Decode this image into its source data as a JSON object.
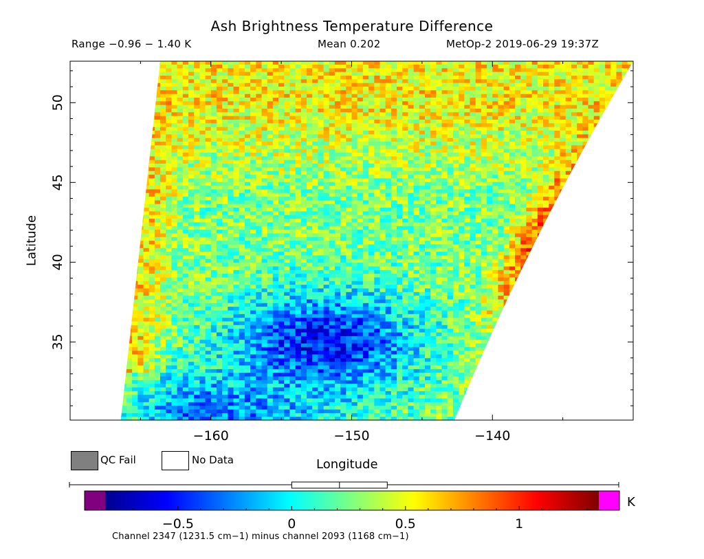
{
  "header": {
    "title": "Ash Brightness Temperature Difference",
    "range_text": "Range −0.96 − 1.40 K",
    "mean_text": "Mean 0.202",
    "satellite_time_text": "MetOp-2 2019-06-29 19:37Z"
  },
  "legend": {
    "qc_fail_label": "QC Fail",
    "no_data_label": "No Data",
    "qc_fail_color": "#808080",
    "no_data_color": "#ffffff"
  },
  "colorbar": {
    "units": "K",
    "vmin": -0.82,
    "vmax": 1.35,
    "ticks": [
      -0.5,
      0,
      0.5,
      1
    ],
    "tick_labels": [
      "−0.5",
      "0",
      "0.5",
      "1"
    ],
    "colors": [
      "#00008f",
      "#0000ff",
      "#007fff",
      "#00ffff",
      "#7fff7f",
      "#ffff00",
      "#ff7f00",
      "#ff0000",
      "#7f0000"
    ],
    "underflow_color": "#800080",
    "overflow_color": "#ff00ff",
    "footnote": "Channel 2347 (1231.5 cm−1) minus channel 2093 (1168 cm−1)"
  },
  "chart_data": {
    "type": "heatmap",
    "title": "Ash Brightness Temperature Difference",
    "xlabel": "Longitude",
    "ylabel": "Latitude",
    "xlim": [
      -170,
      -130
    ],
    "ylim": [
      30.1,
      52.6
    ],
    "x_ticks": [
      -160,
      -150,
      -140
    ],
    "x_tick_labels": [
      "−160",
      "−150",
      "−140"
    ],
    "y_ticks": [
      35,
      40,
      45,
      50
    ],
    "y_tick_labels": [
      "35",
      "40",
      "45",
      "50"
    ],
    "value_range": [
      -0.96,
      1.4
    ],
    "mean": 0.202,
    "swath": {
      "lat": [
        30.1,
        52.6
      ],
      "west_edge_lon": [
        -166.4,
        -163.6
      ],
      "east_edge_lon": [
        -142.7,
        -130.0
      ]
    },
    "regional_values": [
      {
        "region": "north (lat 48-52.6)",
        "value": 0.55
      },
      {
        "region": "west edge (lon < -161)",
        "value": 0.6
      },
      {
        "region": "east edge (lon > -139, lat 38-45)",
        "value": 0.9
      },
      {
        "region": "central (lat 40-46)",
        "value": 0.25
      },
      {
        "region": "south-central (lat 33-37, lon -156 to -148)",
        "value": -0.55
      },
      {
        "region": "southwest (lat 30-33)",
        "value": -0.3
      }
    ],
    "mean_marker": {
      "box_low": 0.0,
      "box_high": 0.42,
      "median": 0.21
    }
  }
}
